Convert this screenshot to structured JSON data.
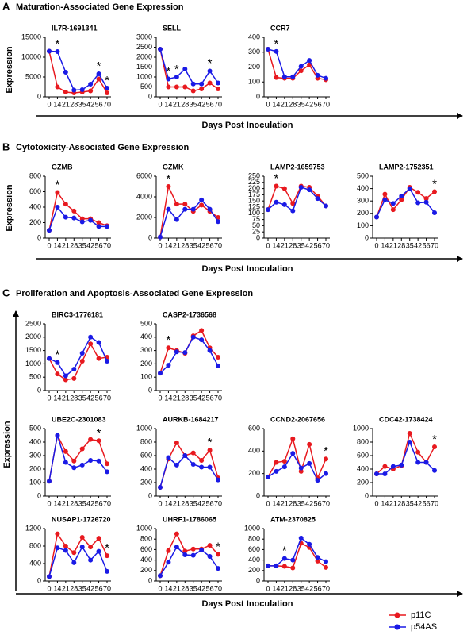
{
  "sections": [
    {
      "letter": "A",
      "title": "Maturation-Associated Gene Expression",
      "xlabel": "Days Post Inoculation",
      "ylabel": "Expression"
    },
    {
      "letter": "B",
      "title": "Cytotoxicity-Associated Gene Expression",
      "xlabel": "Days Post Inoculation",
      "ylabel": "Expression"
    },
    {
      "letter": "C",
      "title": "Proliferation and Apoptosis-Associated Gene Expression",
      "xlabel": "Days Post Inoculation",
      "ylabel": "Expression"
    }
  ],
  "chart_data": [
    {
      "type": "line",
      "title": "IL7R-1691341",
      "categories": [
        "0",
        "14",
        "21",
        "28",
        "35",
        "42",
        "56",
        "70"
      ],
      "series": [
        {
          "name": "p11C",
          "color": "#e8191f",
          "values": [
            11500,
            2500,
            1200,
            1000,
            1200,
            1500,
            4500,
            1000
          ]
        },
        {
          "name": "p54AS",
          "color": "#1a1ae6",
          "values": [
            11500,
            11400,
            6200,
            1700,
            1800,
            3200,
            5800,
            2200
          ]
        }
      ],
      "ylim": [
        0,
        15000
      ],
      "yticks": [
        0,
        5000,
        10000,
        15000
      ],
      "annotations": [
        {
          "text": "*",
          "category": "14"
        },
        {
          "text": "*",
          "category": "56"
        },
        {
          "text": "*",
          "category": "70"
        }
      ]
    },
    {
      "type": "line",
      "title": "SELL",
      "categories": [
        "0",
        "14",
        "21",
        "28",
        "35",
        "42",
        "56",
        "70"
      ],
      "series": [
        {
          "name": "p11C",
          "color": "#e8191f",
          "values": [
            2400,
            500,
            500,
            500,
            300,
            400,
            700,
            400
          ]
        },
        {
          "name": "p54AS",
          "color": "#1a1ae6",
          "values": [
            2400,
            900,
            1000,
            1400,
            650,
            650,
            1300,
            700
          ]
        }
      ],
      "ylim": [
        0,
        3000
      ],
      "yticks": [
        0,
        500,
        1000,
        1500,
        2000,
        2500,
        3000
      ],
      "annotations": [
        {
          "text": "*",
          "category": "14"
        },
        {
          "text": "*",
          "category": "21"
        },
        {
          "text": "*",
          "category": "56"
        }
      ]
    },
    {
      "type": "line",
      "title": "CCR7",
      "categories": [
        "0",
        "14",
        "21",
        "28",
        "35",
        "42",
        "56",
        "70"
      ],
      "series": [
        {
          "name": "p11C",
          "color": "#e8191f",
          "values": [
            320,
            130,
            125,
            125,
            175,
            215,
            125,
            115
          ]
        },
        {
          "name": "p54AS",
          "color": "#1a1ae6",
          "values": [
            320,
            305,
            135,
            135,
            205,
            245,
            145,
            125
          ]
        }
      ],
      "ylim": [
        0,
        400
      ],
      "yticks": [
        0,
        100,
        200,
        300,
        400
      ],
      "annotations": [
        {
          "text": "*",
          "category": "14"
        }
      ]
    },
    {
      "type": "line",
      "title": "GZMB",
      "categories": [
        "0",
        "14",
        "21",
        "28",
        "35",
        "42",
        "56",
        "70"
      ],
      "series": [
        {
          "name": "p11C",
          "color": "#e8191f",
          "values": [
            100,
            590,
            440,
            350,
            250,
            250,
            200,
            160
          ]
        },
        {
          "name": "p54AS",
          "color": "#1a1ae6",
          "values": [
            100,
            400,
            270,
            260,
            210,
            230,
            150,
            150
          ]
        }
      ],
      "ylim": [
        0,
        800
      ],
      "yticks": [
        0,
        200,
        400,
        600,
        800
      ],
      "annotations": [
        {
          "text": "*",
          "category": "14"
        }
      ]
    },
    {
      "type": "line",
      "title": "GZMK",
      "categories": [
        "0",
        "14",
        "21",
        "28",
        "35",
        "42",
        "56",
        "70"
      ],
      "series": [
        {
          "name": "p11C",
          "color": "#e8191f",
          "values": [
            100,
            5000,
            3300,
            3300,
            2600,
            3200,
            2600,
            2000
          ]
        },
        {
          "name": "p54AS",
          "color": "#1a1ae6",
          "values": [
            100,
            2800,
            1800,
            2800,
            2800,
            3700,
            2800,
            1600
          ]
        }
      ],
      "ylim": [
        0,
        6000
      ],
      "yticks": [
        0,
        2000,
        4000,
        6000
      ],
      "annotations": [
        {
          "text": "*",
          "category": "14"
        }
      ]
    },
    {
      "type": "line",
      "title": "LAMP2-1659753",
      "categories": [
        "0",
        "14",
        "21",
        "28",
        "35",
        "42",
        "56",
        "70"
      ],
      "series": [
        {
          "name": "p11C",
          "color": "#e8191f",
          "values": [
            115,
            210,
            200,
            140,
            210,
            205,
            170,
            130
          ]
        },
        {
          "name": "p54AS",
          "color": "#1a1ae6",
          "values": [
            115,
            145,
            135,
            110,
            205,
            195,
            160,
            130
          ]
        }
      ],
      "ylim": [
        0,
        250
      ],
      "yticks": [
        0,
        25,
        50,
        75,
        100,
        125,
        150,
        175,
        200,
        225,
        250
      ],
      "annotations": [
        {
          "text": "*",
          "category": "14"
        }
      ]
    },
    {
      "type": "line",
      "title": "LAMP2-1752351",
      "categories": [
        "0",
        "14",
        "21",
        "28",
        "35",
        "42",
        "56",
        "70"
      ],
      "series": [
        {
          "name": "p11C",
          "color": "#e8191f",
          "values": [
            170,
            355,
            230,
            310,
            410,
            370,
            320,
            375
          ]
        },
        {
          "name": "p54AS",
          "color": "#1a1ae6",
          "values": [
            170,
            310,
            280,
            340,
            400,
            285,
            290,
            205
          ]
        }
      ],
      "ylim": [
        0,
        500
      ],
      "yticks": [
        0,
        100,
        200,
        300,
        400,
        500
      ],
      "annotations": [
        {
          "text": "*",
          "category": "70"
        }
      ]
    },
    {
      "type": "line",
      "title": "BIRC3-1776181",
      "categories": [
        "0",
        "14",
        "21",
        "28",
        "35",
        "42",
        "56",
        "70"
      ],
      "series": [
        {
          "name": "p11C",
          "color": "#e8191f",
          "values": [
            1200,
            620,
            400,
            450,
            1100,
            1750,
            1200,
            1250
          ]
        },
        {
          "name": "p54AS",
          "color": "#1a1ae6",
          "values": [
            1200,
            1050,
            550,
            800,
            1400,
            2000,
            1800,
            1100
          ]
        }
      ],
      "ylim": [
        0,
        2500
      ],
      "yticks": [
        0,
        500,
        1000,
        1500,
        2000,
        2500
      ],
      "annotations": [
        {
          "text": "*",
          "category": "14"
        }
      ]
    },
    {
      "type": "line",
      "title": "CASP2-1736568",
      "categories": [
        "0",
        "14",
        "21",
        "28",
        "35",
        "42",
        "56",
        "70"
      ],
      "series": [
        {
          "name": "p11C",
          "color": "#e8191f",
          "values": [
            130,
            320,
            300,
            280,
            410,
            450,
            320,
            250
          ]
        },
        {
          "name": "p54AS",
          "color": "#1a1ae6",
          "values": [
            130,
            190,
            290,
            285,
            400,
            380,
            300,
            185
          ]
        }
      ],
      "ylim": [
        0,
        500
      ],
      "yticks": [
        0,
        100,
        200,
        300,
        400,
        500
      ],
      "annotations": [
        {
          "text": "*",
          "category": "14"
        }
      ]
    },
    {
      "type": "line",
      "title": "UBE2C-2301083",
      "categories": [
        "0",
        "14",
        "21",
        "28",
        "35",
        "42",
        "56",
        "70"
      ],
      "series": [
        {
          "name": "p11C",
          "color": "#e8191f",
          "values": [
            110,
            450,
            330,
            260,
            350,
            420,
            410,
            240
          ]
        },
        {
          "name": "p54AS",
          "color": "#1a1ae6",
          "values": [
            110,
            450,
            250,
            210,
            230,
            265,
            260,
            180
          ]
        }
      ],
      "ylim": [
        0,
        500
      ],
      "yticks": [
        0,
        100,
        200,
        300,
        400,
        500
      ],
      "annotations": [
        {
          "text": "*",
          "category": "56"
        }
      ]
    },
    {
      "type": "line",
      "title": "AURKB-1684217",
      "categories": [
        "0",
        "14",
        "21",
        "28",
        "35",
        "42",
        "56",
        "70"
      ],
      "series": [
        {
          "name": "p11C",
          "color": "#e8191f",
          "values": [
            130,
            550,
            790,
            600,
            640,
            530,
            680,
            270
          ]
        },
        {
          "name": "p54AS",
          "color": "#1a1ae6",
          "values": [
            130,
            570,
            460,
            600,
            470,
            430,
            430,
            240
          ]
        }
      ],
      "ylim": [
        0,
        1000
      ],
      "yticks": [
        0,
        200,
        400,
        600,
        800,
        1000
      ],
      "annotations": [
        {
          "text": "*",
          "category": "56"
        }
      ]
    },
    {
      "type": "line",
      "title": "CCND2-2067656",
      "categories": [
        "0",
        "14",
        "21",
        "28",
        "35",
        "42",
        "56",
        "70"
      ],
      "series": [
        {
          "name": "p11C",
          "color": "#e8191f",
          "values": [
            170,
            300,
            310,
            510,
            220,
            460,
            160,
            330
          ]
        },
        {
          "name": "p54AS",
          "color": "#1a1ae6",
          "values": [
            170,
            220,
            260,
            380,
            250,
            290,
            140,
            200
          ]
        }
      ],
      "ylim": [
        0,
        600
      ],
      "yticks": [
        0,
        200,
        400,
        600
      ],
      "annotations": [
        {
          "text": "*",
          "category": "70"
        }
      ]
    },
    {
      "type": "line",
      "title": "CDC42-1738424",
      "categories": [
        "0",
        "14",
        "21",
        "28",
        "35",
        "42",
        "56",
        "70"
      ],
      "series": [
        {
          "name": "p11C",
          "color": "#e8191f",
          "values": [
            330,
            440,
            400,
            450,
            930,
            650,
            500,
            730
          ]
        },
        {
          "name": "p54AS",
          "color": "#1a1ae6",
          "values": [
            330,
            330,
            440,
            460,
            800,
            500,
            500,
            380
          ]
        }
      ],
      "ylim": [
        0,
        1000
      ],
      "yticks": [
        0,
        200,
        400,
        600,
        800,
        1000
      ],
      "annotations": [
        {
          "text": "*",
          "category": "70"
        }
      ]
    },
    {
      "type": "line",
      "title": "NUSAP1-1726720",
      "categories": [
        "0",
        "14",
        "21",
        "28",
        "35",
        "42",
        "56",
        "70"
      ],
      "series": [
        {
          "name": "p11C",
          "color": "#e8191f",
          "values": [
            100,
            1080,
            800,
            650,
            1000,
            780,
            980,
            580
          ]
        },
        {
          "name": "p54AS",
          "color": "#1a1ae6",
          "values": [
            100,
            760,
            700,
            420,
            780,
            480,
            680,
            220
          ]
        }
      ],
      "ylim": [
        0,
        1200
      ],
      "yticks": [
        0,
        400,
        800,
        1200
      ],
      "annotations": [
        {
          "text": "*",
          "category": "70"
        }
      ]
    },
    {
      "type": "line",
      "title": "UHRF1-1786065",
      "categories": [
        "0",
        "14",
        "21",
        "28",
        "35",
        "42",
        "56",
        "70"
      ],
      "series": [
        {
          "name": "p11C",
          "color": "#e8191f",
          "values": [
            100,
            580,
            900,
            570,
            610,
            610,
            680,
            510
          ]
        },
        {
          "name": "p54AS",
          "color": "#1a1ae6",
          "values": [
            100,
            360,
            650,
            500,
            490,
            590,
            470,
            240
          ]
        }
      ],
      "ylim": [
        0,
        1000
      ],
      "yticks": [
        0,
        200,
        400,
        600,
        800,
        1000
      ],
      "annotations": [
        {
          "text": "*",
          "category": "70"
        }
      ]
    },
    {
      "type": "line",
      "title": "ATM-2370825",
      "categories": [
        "0",
        "14",
        "21",
        "28",
        "35",
        "42",
        "56",
        "70"
      ],
      "series": [
        {
          "name": "p11C",
          "color": "#e8191f",
          "values": [
            290,
            290,
            280,
            250,
            720,
            640,
            380,
            260
          ]
        },
        {
          "name": "p54AS",
          "color": "#1a1ae6",
          "values": [
            290,
            290,
            430,
            400,
            820,
            700,
            450,
            370
          ]
        }
      ],
      "ylim": [
        0,
        1000
      ],
      "yticks": [
        0,
        200,
        400,
        600,
        800,
        1000
      ],
      "annotations": [
        {
          "text": "*",
          "category": "21"
        }
      ]
    }
  ]
}
